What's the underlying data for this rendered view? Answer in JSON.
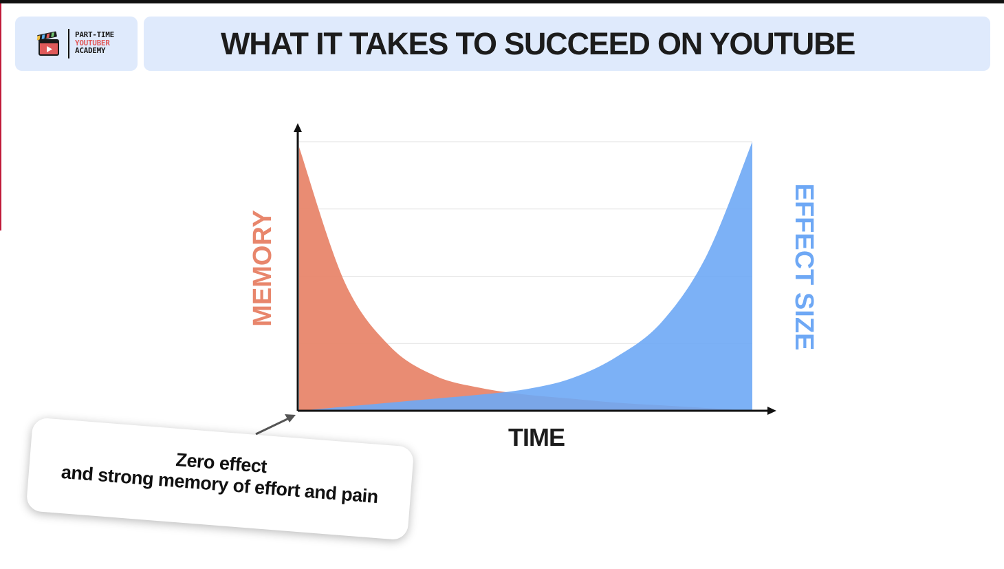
{
  "header": {
    "logo": {
      "line1": "PART-TIME",
      "line2": "YOUTUBER",
      "line3": "ACADEMY"
    },
    "title": "WHAT IT TAKES TO SUCCEED ON YOUTUBE"
  },
  "colors": {
    "memory": "#e8866c",
    "effect": "#6ea8f5",
    "axis": "#111111",
    "header_bg": "#dfeafc"
  },
  "chart_data": {
    "type": "area",
    "xlabel": "TIME",
    "ylabel_left": "MEMORY",
    "ylabel_right": "EFFECT SIZE",
    "grid": true,
    "gridlines": 4,
    "xlim": [
      0,
      1
    ],
    "ylim": [
      0,
      1
    ],
    "series": [
      {
        "name": "MEMORY",
        "x": [
          0,
          0.1,
          0.2,
          0.3,
          0.4,
          0.5,
          0.6,
          0.7,
          0.8,
          0.9,
          1.0
        ],
        "values": [
          0.98,
          0.48,
          0.24,
          0.13,
          0.085,
          0.06,
          0.045,
          0.03,
          0.02,
          0.01,
          0.0
        ]
      },
      {
        "name": "EFFECT SIZE",
        "x": [
          0,
          0.1,
          0.2,
          0.3,
          0.4,
          0.5,
          0.6,
          0.7,
          0.8,
          0.9,
          1.0
        ],
        "values": [
          0.0,
          0.015,
          0.03,
          0.045,
          0.06,
          0.08,
          0.12,
          0.2,
          0.33,
          0.58,
          1.0
        ]
      }
    ]
  },
  "callout": {
    "line1": "Zero effect",
    "line2": "and strong memory of effort and pain"
  }
}
